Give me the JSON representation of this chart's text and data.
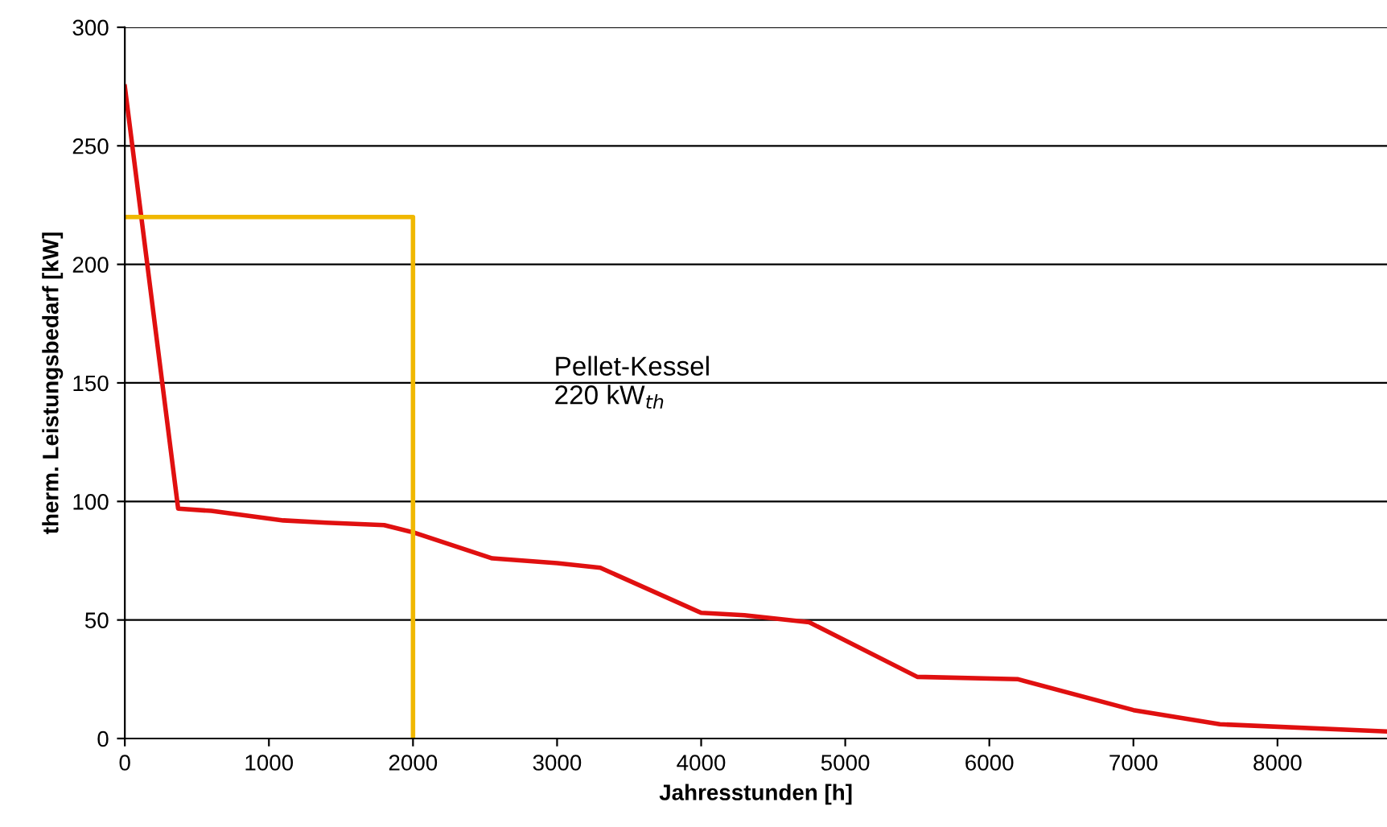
{
  "chart_data": {
    "type": "line",
    "xlabel": "Jahresstunden [h]",
    "ylabel": "therm. Leistungsbedarf [kW]",
    "xlim": [
      0,
      8760
    ],
    "ylim": [
      0,
      300
    ],
    "xticks": [
      0,
      1000,
      2000,
      3000,
      4000,
      5000,
      6000,
      7000,
      8000
    ],
    "yticks": [
      0,
      50,
      100,
      150,
      200,
      250,
      300
    ],
    "grid": "y",
    "marker": "none",
    "line_style": "solid",
    "series": [
      {
        "color": "#e01010",
        "x": [
          0,
          370,
          600,
          1100,
          1400,
          1800,
          2000,
          2550,
          3000,
          3300,
          4000,
          4300,
          4750,
          5500,
          6200,
          7000,
          7600,
          8760
        ],
        "values": [
          275,
          97,
          96,
          92,
          91,
          90,
          87,
          76,
          74,
          72,
          53,
          52,
          49,
          26,
          25,
          12,
          6,
          3
        ]
      },
      {
        "color": "#f0b800",
        "x": [
          0,
          2000,
          2000
        ],
        "values": [
          220,
          220,
          0
        ]
      }
    ],
    "annotations": [
      "Pellet-Kessel\n220 kW$_{th}$"
    ]
  }
}
